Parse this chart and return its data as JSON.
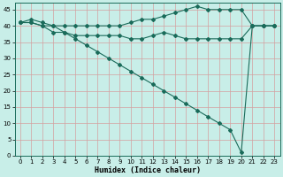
{
  "line1_x": [
    0,
    1,
    2,
    3,
    4,
    5,
    6,
    7,
    8,
    9,
    10,
    11,
    12,
    13,
    14,
    15,
    16,
    17,
    18,
    19,
    20,
    21,
    22,
    23
  ],
  "line1_y": [
    41,
    42,
    41,
    40,
    40,
    40,
    40,
    40,
    40,
    40,
    41,
    42,
    42,
    43,
    44,
    45,
    46,
    45,
    45,
    45,
    45,
    40,
    40,
    40
  ],
  "line2_x": [
    0,
    1,
    2,
    3,
    4,
    5,
    6,
    7,
    8,
    9,
    10,
    11,
    12,
    13,
    14,
    15,
    16,
    17,
    18,
    19,
    20,
    21,
    22,
    23
  ],
  "line2_y": [
    41,
    41,
    40,
    38,
    38,
    37,
    37,
    37,
    37,
    37,
    36,
    36,
    37,
    38,
    37,
    36,
    36,
    36,
    36,
    36,
    36,
    40,
    40,
    40
  ],
  "line3_x": [
    0,
    1,
    2,
    3,
    4,
    5,
    6,
    7,
    8,
    9,
    10,
    11,
    12,
    13,
    14,
    15,
    16,
    17,
    18,
    19,
    20,
    21,
    22,
    23
  ],
  "line3_y": [
    41,
    41,
    40,
    40,
    38,
    36,
    34,
    32,
    30,
    28,
    26,
    24,
    22,
    20,
    18,
    16,
    14,
    12,
    10,
    8,
    1,
    40,
    40,
    40
  ],
  "line_color": "#1a6b5a",
  "bg_color": "#c8eee8",
  "grid_color": "#d4a0a0",
  "xlabel": "Humidex (Indice chaleur)",
  "xlim": [
    -0.5,
    23.5
  ],
  "ylim": [
    0,
    47
  ],
  "yticks": [
    0,
    5,
    10,
    15,
    20,
    25,
    30,
    35,
    40,
    45
  ],
  "xticks": [
    0,
    1,
    2,
    3,
    4,
    5,
    6,
    7,
    8,
    9,
    10,
    11,
    12,
    13,
    14,
    15,
    16,
    17,
    18,
    19,
    20,
    21,
    22,
    23
  ],
  "xticklabels": [
    "0",
    "1",
    "2",
    "3",
    "4",
    "5",
    "6",
    "7",
    "8",
    "9",
    "10",
    "11",
    "12",
    "13",
    "14",
    "15",
    "16",
    "17",
    "18",
    "19",
    "20",
    "21",
    "22",
    "23"
  ]
}
